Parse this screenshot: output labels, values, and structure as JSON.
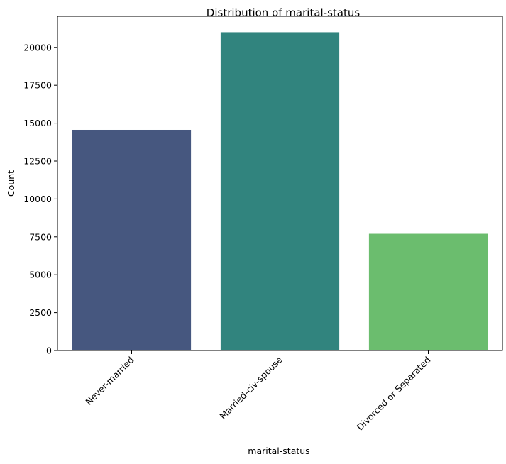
{
  "chart_data": {
    "type": "bar",
    "title": "Distribution of marital-status",
    "xlabel": "marital-status",
    "ylabel": "Count",
    "categories": [
      "Never-married",
      "Married-civ-spouse",
      "Divorced or Separated"
    ],
    "values": [
      14560,
      21000,
      7700
    ],
    "colors": [
      "#46577F",
      "#31847E",
      "#6BBD6E"
    ],
    "ylim": [
      0,
      22050
    ],
    "yticks": [
      0,
      2500,
      5000,
      7500,
      10000,
      12500,
      15000,
      17500,
      20000
    ],
    "grid": false,
    "legend": "none",
    "x_tick_rotation_deg": -45
  }
}
